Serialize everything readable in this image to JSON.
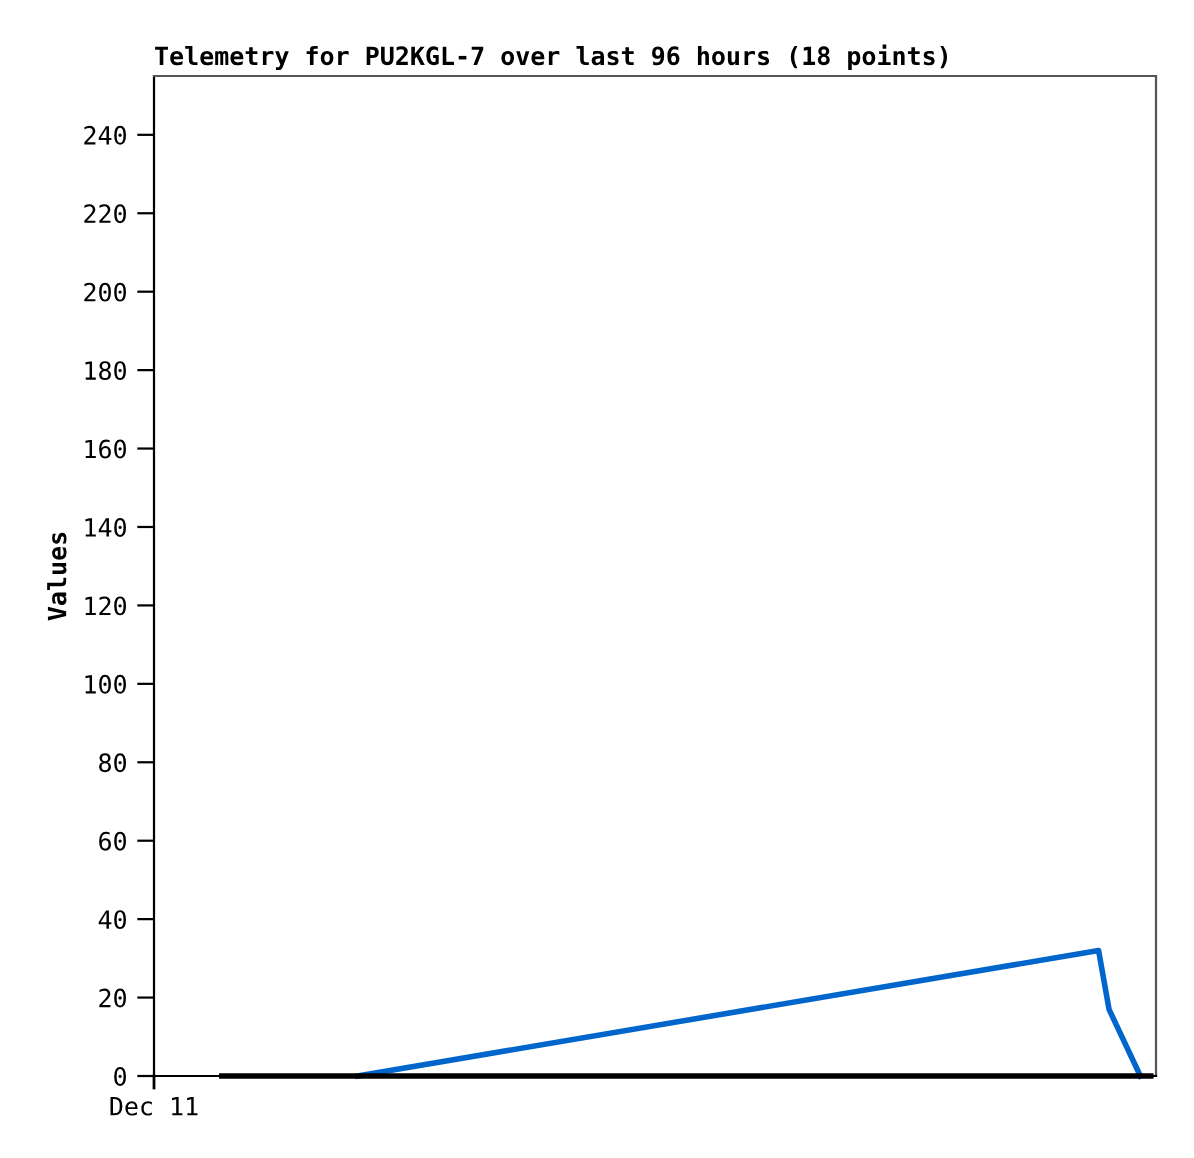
{
  "chart_data": {
    "type": "line",
    "title": "Telemetry for PU2KGL-7 over last 96 hours (18 points)",
    "ylabel": "Values",
    "categories": [
      null,
      null,
      null,
      null,
      null,
      null,
      null,
      null,
      null,
      null,
      null,
      null,
      null,
      null,
      null,
      null,
      null,
      null,
      null,
      null,
      null,
      null,
      null,
      null,
      null,
      null,
      null,
      null,
      null,
      null,
      null,
      null,
      null,
      null,
      null,
      null,
      null,
      null,
      null,
      null,
      null,
      null,
      null,
      null,
      null,
      null,
      null,
      null,
      null,
      null,
      null,
      null,
      null,
      null,
      null,
      null,
      null,
      null,
      null,
      null,
      null,
      null,
      null,
      null,
      null,
      null,
      null,
      null,
      null,
      null,
      null,
      null,
      null,
      null,
      null,
      null,
      null,
      null,
      null,
      null,
      null,
      null,
      null,
      null,
      null,
      null,
      null,
      null,
      null,
      null,
      null,
      null,
      null,
      null,
      null,
      null
    ],
    "annotations": [
      "Dec 11"
    ],
    "ylim": [
      0,
      255
    ],
    "yticks": [
      0,
      20,
      40,
      60,
      80,
      100,
      120,
      140,
      160,
      180,
      200,
      220,
      240
    ],
    "grid": false,
    "marker": "none",
    "line_style": "solid",
    "series": [
      {
        "color": "#000000",
        "values": [
          null,
          null,
          null,
          null,
          null,
          null,
          0,
          null,
          null,
          null,
          null,
          null,
          null,
          null,
          null,
          null,
          null,
          null,
          null,
          null,
          null,
          null,
          null,
          null,
          null,
          null,
          null,
          null,
          null,
          null,
          null,
          null,
          null,
          null,
          null,
          null,
          null,
          null,
          null,
          null,
          null,
          null,
          null,
          null,
          null,
          null,
          null,
          null,
          null,
          null,
          null,
          null,
          null,
          null,
          null,
          null,
          null,
          null,
          null,
          null,
          null,
          null,
          null,
          null,
          null,
          null,
          null,
          null,
          null,
          null,
          null,
          null,
          null,
          null,
          null,
          null,
          null,
          null,
          null,
          null,
          null,
          null,
          null,
          null,
          null,
          null,
          null,
          null,
          null,
          null,
          null,
          null,
          null,
          null,
          null,
          0
        ]
      },
      {
        "color": "#0066cc",
        "values": [
          null,
          null,
          null,
          null,
          null,
          null,
          null,
          null,
          null,
          null,
          null,
          null,
          null,
          null,
          null,
          null,
          null,
          null,
          null,
          0,
          null,
          null,
          null,
          null,
          null,
          null,
          null,
          null,
          null,
          null,
          null,
          null,
          null,
          null,
          null,
          null,
          null,
          null,
          null,
          null,
          null,
          null,
          null,
          null,
          null,
          null,
          null,
          null,
          null,
          null,
          null,
          null,
          null,
          null,
          null,
          null,
          null,
          null,
          null,
          null,
          null,
          null,
          null,
          null,
          null,
          null,
          null,
          null,
          null,
          null,
          null,
          null,
          null,
          null,
          null,
          null,
          null,
          null,
          null,
          null,
          null,
          null,
          null,
          null,
          null,
          null,
          null,
          null,
          null,
          null,
          32,
          17,
          null,
          null,
          0,
          null
        ]
      }
    ]
  }
}
